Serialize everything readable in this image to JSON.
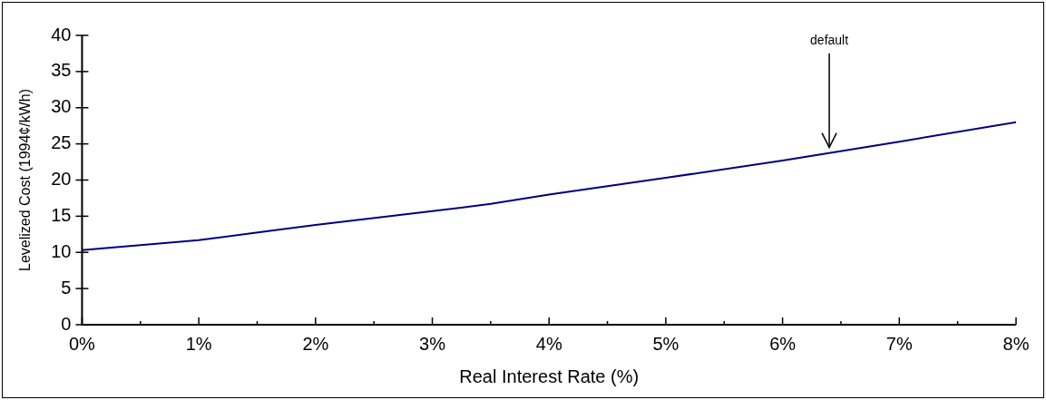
{
  "chart_data": {
    "type": "line",
    "xlabel": "Real Interest Rate (%)",
    "ylabel": "Levelized Cost (1994¢/kWh)",
    "x": [
      0,
      1,
      2,
      3,
      3.5,
      4,
      5,
      6,
      7,
      8
    ],
    "series": [
      {
        "color": "#000080",
        "values": [
          10.3,
          11.7,
          13.8,
          15.7,
          16.7,
          18.0,
          20.3,
          22.7,
          25.3,
          28.0
        ]
      }
    ],
    "xlim": [
      0,
      8
    ],
    "xticks": [
      {
        "value": 0,
        "label": "0%"
      },
      {
        "value": 0.5,
        "label": null
      },
      {
        "value": 1,
        "label": "1%"
      },
      {
        "value": 1.5,
        "label": null
      },
      {
        "value": 2,
        "label": "2%"
      },
      {
        "value": 2.5,
        "label": null
      },
      {
        "value": 3,
        "label": "3%"
      },
      {
        "value": 3.5,
        "label": null
      },
      {
        "value": 4,
        "label": "4%"
      },
      {
        "value": 4.5,
        "label": null
      },
      {
        "value": 5,
        "label": "5%"
      },
      {
        "value": 5.5,
        "label": null
      },
      {
        "value": 6,
        "label": "6%"
      },
      {
        "value": 6.5,
        "label": null
      },
      {
        "value": 7,
        "label": "7%"
      },
      {
        "value": 7.5,
        "label": null
      },
      {
        "value": 8,
        "label": "8%"
      }
    ],
    "ylim": [
      0,
      40
    ],
    "yticks": [
      0,
      5,
      10,
      15,
      20,
      25,
      30,
      35,
      40
    ],
    "annotations": [
      "default"
    ],
    "grid": false,
    "legend": false,
    "marker": "none",
    "line_style": "solid"
  }
}
